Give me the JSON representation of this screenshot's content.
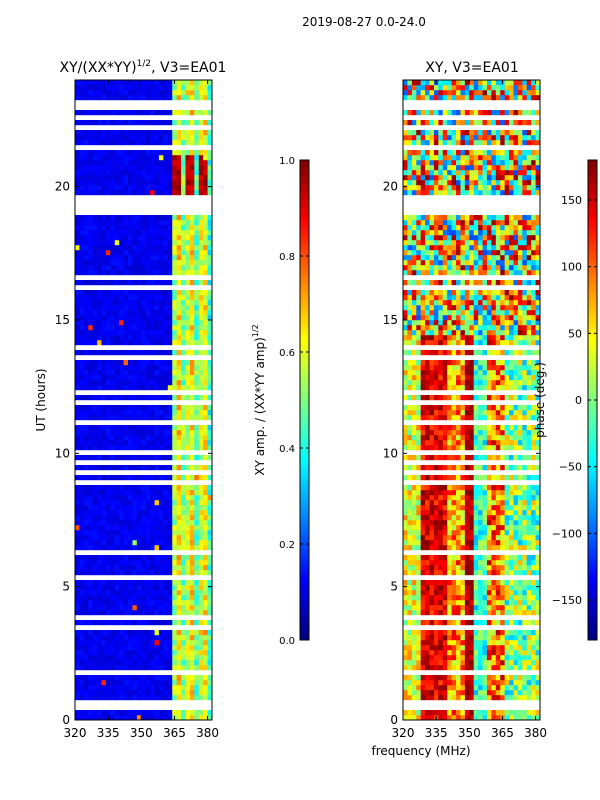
{
  "suptitle": "2019-08-27 0.0-24.0",
  "colors": {
    "jet": [
      "#00007f",
      "#0000ff",
      "#007fff",
      "#00ffff",
      "#7fff7f",
      "#ffff00",
      "#ff7f00",
      "#ff0000",
      "#7f0000"
    ],
    "gap": "#ffffff",
    "axis": "#000000"
  },
  "chart_data": [
    {
      "type": "heatmap",
      "title_prefix": "XY/(XX*YY)",
      "title_exponent": "1/2",
      "title_suffix": ", V3=EA01",
      "xlabel": "",
      "ylabel": "UT (hours)",
      "xlim": [
        320,
        382
      ],
      "ylim": [
        0,
        24
      ],
      "xticks": [
        "320",
        "335",
        "350",
        "365",
        "380"
      ],
      "xtick_values": [
        320,
        335,
        350,
        365,
        380
      ],
      "yticks": [
        "0",
        "5",
        "10",
        "15",
        "20"
      ],
      "ytick_values": [
        0,
        5,
        10,
        15,
        20
      ],
      "colorbar": {
        "label": "XY amp. / (XX*YY amp)",
        "label_exponent": "1/2",
        "range": [
          0.0,
          1.0
        ],
        "ticks": [
          "0.0",
          "0.2",
          "0.4",
          "0.6",
          "0.8",
          "1.0"
        ],
        "tick_values": [
          0.0,
          0.2,
          0.4,
          0.6,
          0.8,
          1.0
        ]
      }
    },
    {
      "type": "heatmap",
      "title": "XY, V3=EA01",
      "xlabel": "frequency (MHz)",
      "ylabel": "",
      "xlim": [
        320,
        382
      ],
      "ylim": [
        0,
        24
      ],
      "xticks": [
        "320",
        "335",
        "350",
        "365",
        "380"
      ],
      "xtick_values": [
        320,
        335,
        350,
        365,
        380
      ],
      "yticks": [
        "0",
        "5",
        "10",
        "15",
        "20"
      ],
      "ytick_values": [
        0,
        5,
        10,
        15,
        20
      ],
      "colorbar": {
        "label": "phase (deg.)",
        "range": [
          -180,
          180
        ],
        "ticks": [
          "−150",
          "−100",
          "−50",
          "0",
          "50",
          "100",
          "150"
        ],
        "tick_values": [
          -150,
          -100,
          -50,
          0,
          50,
          100,
          150
        ]
      }
    }
  ]
}
